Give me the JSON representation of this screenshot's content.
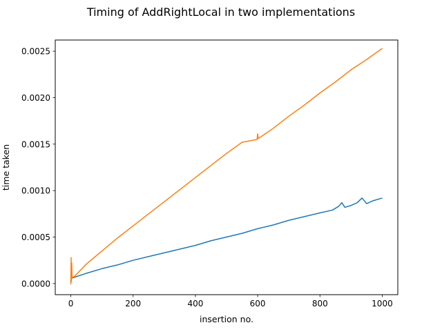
{
  "chart_data": {
    "type": "line",
    "title": "Timing of AddRightLocal in two implementations",
    "xlabel": "insertion no.",
    "ylabel": "time taken",
    "xlim": [
      -50,
      1050
    ],
    "ylim": [
      -0.00012,
      0.00262
    ],
    "x_ticks": [
      0,
      200,
      400,
      600,
      800,
      1000
    ],
    "x_tick_labels": [
      "0",
      "200",
      "400",
      "600",
      "800",
      "1000"
    ],
    "y_ticks": [
      0.0,
      0.0005,
      0.001,
      0.0015,
      0.002,
      0.0025
    ],
    "y_tick_labels": [
      "0.0000",
      "0.0005",
      "0.0010",
      "0.0015",
      "0.0020",
      "0.0025"
    ],
    "grid": false,
    "legend": "none",
    "series": [
      {
        "color": "#1f77b4",
        "x": [
          0,
          1,
          2,
          5,
          50,
          100,
          150,
          200,
          250,
          300,
          350,
          400,
          450,
          500,
          550,
          600,
          650,
          700,
          750,
          800,
          840,
          860,
          870,
          880,
          900,
          920,
          935,
          950,
          970,
          1000
        ],
        "y": [
          3e-05,
          6e-05,
          6e-05,
          6e-05,
          0.00011,
          0.00016,
          0.0002,
          0.00025,
          0.00029,
          0.00033,
          0.00037,
          0.00041,
          0.00046,
          0.0005,
          0.00054,
          0.00059,
          0.00063,
          0.00068,
          0.00072,
          0.00076,
          0.00079,
          0.00083,
          0.00087,
          0.00082,
          0.00084,
          0.00087,
          0.00092,
          0.00086,
          0.00089,
          0.00092
        ]
      },
      {
        "color": "#ff7f0e",
        "x": [
          0,
          1,
          2,
          3,
          4,
          6,
          10,
          50,
          100,
          150,
          200,
          250,
          300,
          350,
          400,
          450,
          500,
          550,
          598,
          600,
          602,
          650,
          700,
          750,
          800,
          850,
          900,
          950,
          1000
        ],
        "y": [
          -1e-05,
          0.00028,
          2e-05,
          0.00022,
          6e-05,
          7e-05,
          7e-05,
          0.00021,
          0.00035,
          0.00049,
          0.00062,
          0.00075,
          0.00088,
          0.00101,
          0.00114,
          0.00127,
          0.0014,
          0.00152,
          0.00155,
          0.00161,
          0.00156,
          0.00167,
          0.0018,
          0.00192,
          0.00205,
          0.00217,
          0.0023,
          0.00241,
          0.00253
        ]
      }
    ]
  }
}
